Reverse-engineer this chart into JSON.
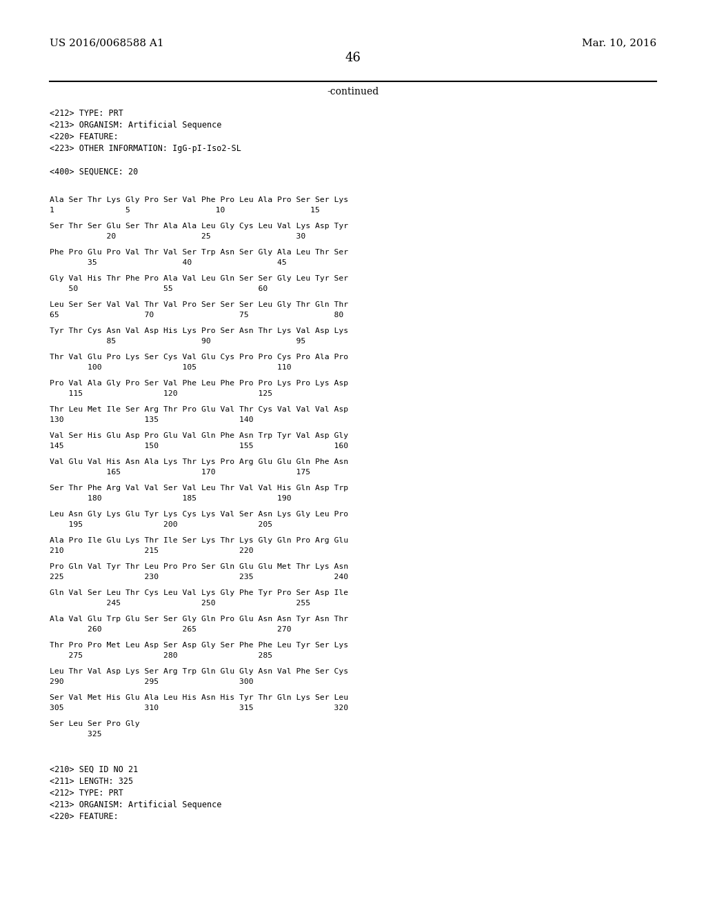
{
  "bg_color": "#ffffff",
  "header_left": "US 2016/0068588 A1",
  "header_right": "Mar. 10, 2016",
  "page_number": "46",
  "continued_text": "-continued",
  "meta_lines": [
    "<212> TYPE: PRT",
    "<213> ORGANISM: Artificial Sequence",
    "<220> FEATURE:",
    "<223> OTHER INFORMATION: IgG-pI-Iso2-SL",
    "",
    "<400> SEQUENCE: 20"
  ],
  "sequence_blocks": [
    [
      "Ala Ser Thr Lys Gly Pro Ser Val Phe Pro Leu Ala Pro Ser Ser Lys",
      "1               5                  10                  15"
    ],
    [
      "Ser Thr Ser Glu Ser Thr Ala Ala Leu Gly Cys Leu Val Lys Asp Tyr",
      "            20                  25                  30"
    ],
    [
      "Phe Pro Glu Pro Val Thr Val Ser Trp Asn Ser Gly Ala Leu Thr Ser",
      "        35                  40                  45"
    ],
    [
      "Gly Val His Thr Phe Pro Ala Val Leu Gln Ser Ser Gly Leu Tyr Ser",
      "    50                  55                  60"
    ],
    [
      "Leu Ser Ser Val Val Thr Val Pro Ser Ser Ser Leu Gly Thr Gln Thr",
      "65                  70                  75                  80"
    ],
    [
      "Tyr Thr Cys Asn Val Asp His Lys Pro Ser Asn Thr Lys Val Asp Lys",
      "            85                  90                  95"
    ],
    [
      "Thr Val Glu Pro Lys Ser Cys Val Glu Cys Pro Pro Cys Pro Ala Pro",
      "        100                 105                 110"
    ],
    [
      "Pro Val Ala Gly Pro Ser Val Phe Leu Phe Pro Pro Lys Pro Lys Asp",
      "    115                 120                 125"
    ],
    [
      "Thr Leu Met Ile Ser Arg Thr Pro Glu Val Thr Cys Val Val Val Asp",
      "130                 135                 140"
    ],
    [
      "Val Ser His Glu Asp Pro Glu Val Gln Phe Asn Trp Tyr Val Asp Gly",
      "145                 150                 155                 160"
    ],
    [
      "Val Glu Val His Asn Ala Lys Thr Lys Pro Arg Glu Glu Gln Phe Asn",
      "            165                 170                 175"
    ],
    [
      "Ser Thr Phe Arg Val Val Ser Val Leu Thr Val Val His Gln Asp Trp",
      "        180                 185                 190"
    ],
    [
      "Leu Asn Gly Lys Glu Tyr Lys Cys Lys Val Ser Asn Lys Gly Leu Pro",
      "    195                 200                 205"
    ],
    [
      "Ala Pro Ile Glu Lys Thr Ile Ser Lys Thr Lys Gly Gln Pro Arg Glu",
      "210                 215                 220"
    ],
    [
      "Pro Gln Val Tyr Thr Leu Pro Pro Ser Gln Glu Glu Met Thr Lys Asn",
      "225                 230                 235                 240"
    ],
    [
      "Gln Val Ser Leu Thr Cys Leu Val Lys Gly Phe Tyr Pro Ser Asp Ile",
      "            245                 250                 255"
    ],
    [
      "Ala Val Glu Trp Glu Ser Ser Gly Gln Pro Glu Asn Asn Tyr Asn Thr",
      "        260                 265                 270"
    ],
    [
      "Thr Pro Pro Met Leu Asp Ser Asp Gly Ser Phe Phe Leu Tyr Ser Lys",
      "    275                 280                 285"
    ],
    [
      "Leu Thr Val Asp Lys Ser Arg Trp Gln Glu Gly Asn Val Phe Ser Cys",
      "290                 295                 300"
    ],
    [
      "Ser Val Met His Glu Ala Leu His Asn His Tyr Thr Gln Lys Ser Leu",
      "305                 310                 315                 320"
    ],
    [
      "Ser Leu Ser Pro Gly",
      "        325"
    ]
  ],
  "footer_meta_lines": [
    "",
    "<210> SEQ ID NO 21",
    "<211> LENGTH: 325",
    "<212> TYPE: PRT",
    "<213> ORGANISM: Artificial Sequence",
    "<220> FEATURE:"
  ],
  "font_size_header": 11,
  "font_size_page": 13,
  "font_size_continued": 10,
  "font_size_meta": 8.5,
  "font_size_seq": 8.2,
  "mono_font": "DejaVu Sans Mono",
  "serif_font": "DejaVu Serif"
}
